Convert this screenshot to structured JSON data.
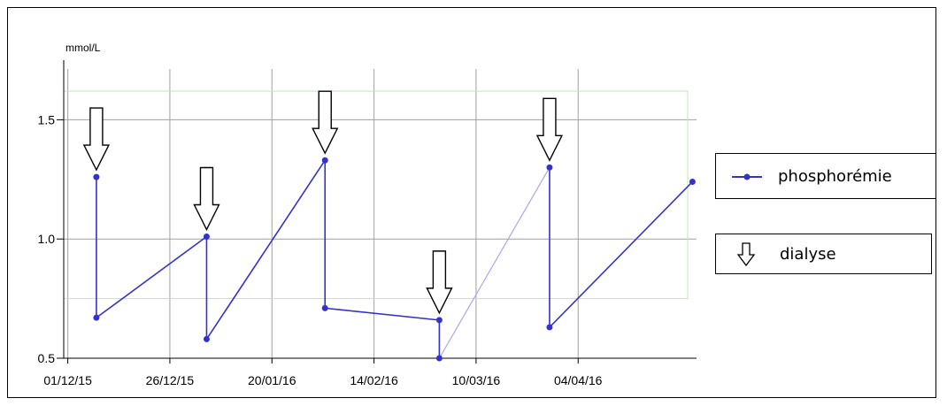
{
  "chart_data": {
    "type": "line",
    "ylabel": "mmol/L",
    "y_ticks": [
      "0.5",
      "1.0",
      "1.5"
    ],
    "ylim": [
      0.5,
      1.75
    ],
    "x_ticks": [
      "01/12/15",
      "26/12/15",
      "20/01/16",
      "14/02/16",
      "10/03/16",
      "04/04/16"
    ],
    "xlim": [
      "2015-11-30",
      "2016-05-03"
    ],
    "target_range": [
      0.75,
      1.62
    ],
    "grid": true,
    "legend_position": "right",
    "series": [
      {
        "name": "phosphorémie",
        "color": "#3333cc",
        "points": [
          {
            "x": "2015-12-08",
            "y": 1.26
          },
          {
            "x": "2015-12-08",
            "y": 0.67
          },
          {
            "x": "2016-01-04",
            "y": 1.01
          },
          {
            "x": "2016-01-04",
            "y": 0.58
          },
          {
            "x": "2016-02-02",
            "y": 1.33
          },
          {
            "x": "2016-02-02",
            "y": 0.71
          },
          {
            "x": "2016-03-01",
            "y": 0.66
          },
          {
            "x": "2016-03-01",
            "y": 0.5
          },
          {
            "x": "2016-03-28",
            "y": 1.3
          },
          {
            "x": "2016-03-28",
            "y": 0.63
          },
          {
            "x": "2016-05-02",
            "y": 1.24
          }
        ]
      },
      {
        "name": "dialyse",
        "marker": "down-arrow",
        "dates": [
          "2015-12-08",
          "2016-01-04",
          "2016-02-02",
          "2016-03-01",
          "2016-03-28"
        ]
      }
    ]
  }
}
